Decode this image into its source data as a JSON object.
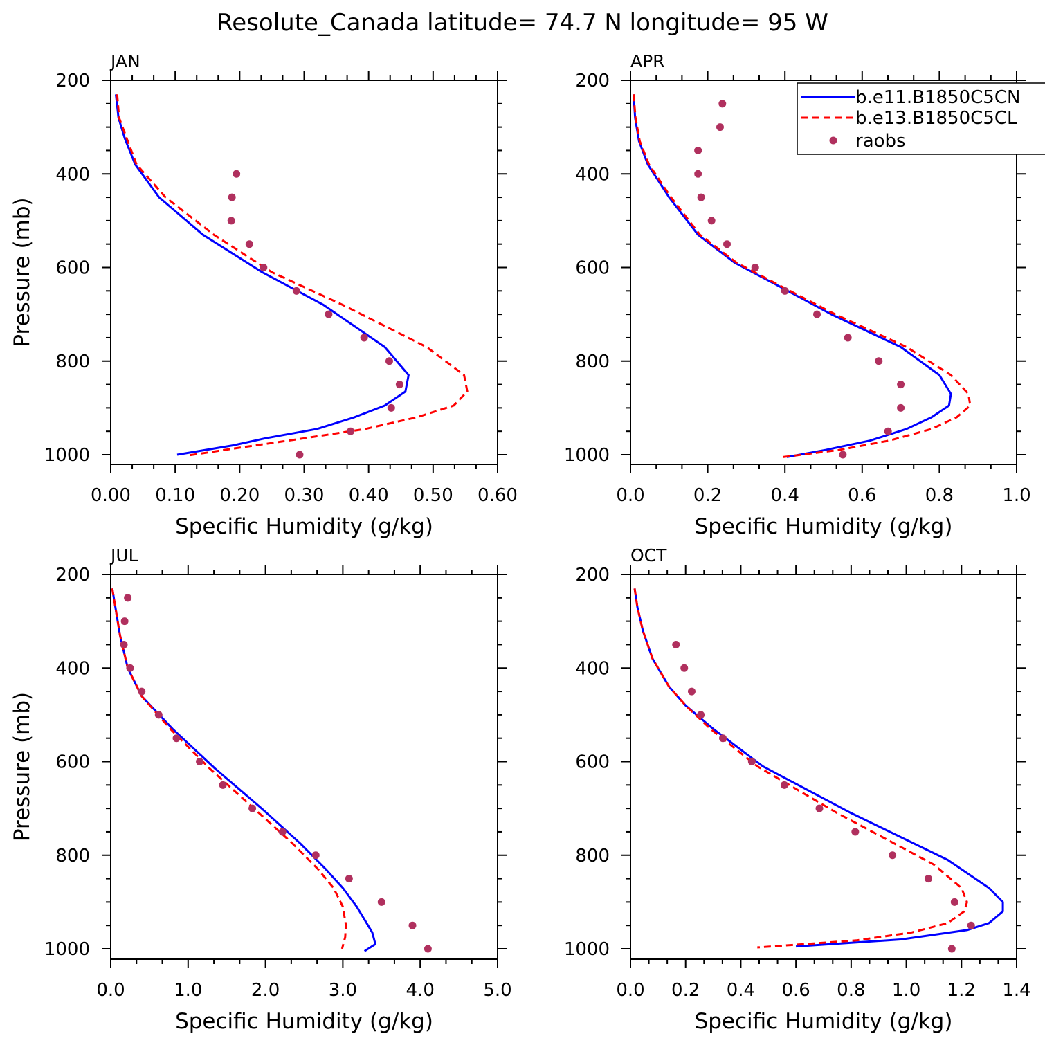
{
  "title": "Resolute_Canada  latitude= 74.7 N longitude= 95 W",
  "legend": {
    "entries": [
      "b.e11.B1850C5CN",
      "b.e13.B1850C5CL",
      "raobs"
    ],
    "colors": [
      "#0000ff",
      "#ff0000",
      "#b0305e"
    ]
  },
  "chart_data": [
    {
      "type": "line",
      "panel": "JAN",
      "xlabel": "Specific Humidity (g/kg)",
      "ylabel": "Pressure (mb)",
      "xlim": [
        0,
        0.6
      ],
      "ylim": [
        200,
        1000
      ],
      "y_inverted": true,
      "xticks": [
        "0.00",
        "0.10",
        "0.20",
        "0.30",
        "0.40",
        "0.50",
        "0.60"
      ],
      "yticks": [
        "200",
        "400",
        "600",
        "800",
        "1000"
      ],
      "series": [
        {
          "name": "b.e11.B1850C5CN",
          "style": "solid",
          "x": [
            0.008,
            0.012,
            0.022,
            0.038,
            0.075,
            0.143,
            0.235,
            0.33,
            0.425,
            0.462,
            0.457,
            0.425,
            0.378,
            0.32,
            0.24,
            0.19,
            0.103
          ],
          "y": [
            230,
            280,
            325,
            380,
            450,
            530,
            610,
            680,
            770,
            830,
            865,
            895,
            920,
            945,
            965,
            980,
            1000
          ]
        },
        {
          "name": "b.e13.B1850C5CL",
          "style": "dashed",
          "x": [
            0.01,
            0.013,
            0.025,
            0.04,
            0.085,
            0.16,
            0.25,
            0.36,
            0.49,
            0.548,
            0.553,
            0.532,
            0.475,
            0.395,
            0.3,
            0.2,
            0.118
          ],
          "y": [
            230,
            280,
            325,
            380,
            450,
            530,
            610,
            680,
            770,
            830,
            865,
            895,
            920,
            945,
            965,
            985,
            1002
          ]
        }
      ],
      "points": {
        "name": "raobs",
        "x": [
          0.195,
          0.188,
          0.187,
          0.215,
          0.237,
          0.288,
          0.338,
          0.393,
          0.432,
          0.448,
          0.435,
          0.372,
          0.293
        ],
        "y": [
          400,
          450,
          500,
          550,
          600,
          650,
          700,
          750,
          800,
          850,
          900,
          950,
          1000
        ]
      }
    },
    {
      "type": "line",
      "panel": "APR",
      "xlabel": "Specific Humidity (g/kg)",
      "ylabel": "",
      "xlim": [
        0,
        1.0
      ],
      "ylim": [
        200,
        1000
      ],
      "y_inverted": true,
      "xticks": [
        "0.0",
        "0.2",
        "0.4",
        "0.6",
        "0.8",
        "1.0"
      ],
      "yticks": [
        "200",
        "400",
        "600",
        "800",
        "1000"
      ],
      "series": [
        {
          "name": "b.e11.B1850C5CN",
          "style": "solid",
          "x": [
            0.008,
            0.012,
            0.022,
            0.045,
            0.1,
            0.175,
            0.27,
            0.385,
            0.52,
            0.7,
            0.8,
            0.83,
            0.825,
            0.78,
            0.715,
            0.62,
            0.505,
            0.405
          ],
          "y": [
            230,
            280,
            330,
            380,
            450,
            530,
            590,
            640,
            700,
            770,
            830,
            870,
            895,
            920,
            945,
            970,
            990,
            1005
          ]
        },
        {
          "name": "b.e13.B1850C5CL",
          "style": "dashed",
          "x": [
            0.008,
            0.013,
            0.024,
            0.048,
            0.105,
            0.18,
            0.275,
            0.39,
            0.53,
            0.715,
            0.83,
            0.875,
            0.88,
            0.845,
            0.78,
            0.67,
            0.54,
            0.395
          ],
          "y": [
            230,
            280,
            330,
            380,
            450,
            530,
            590,
            640,
            700,
            770,
            830,
            870,
            895,
            920,
            945,
            970,
            990,
            1005
          ]
        }
      ],
      "points": {
        "name": "raobs",
        "x": [
          0.238,
          0.232,
          0.175,
          0.175,
          0.183,
          0.21,
          0.25,
          0.323,
          0.4,
          0.483,
          0.563,
          0.643,
          0.7,
          0.7,
          0.667,
          0.55
        ],
        "y": [
          250,
          300,
          350,
          400,
          450,
          500,
          550,
          600,
          650,
          700,
          750,
          800,
          850,
          900,
          950,
          1000
        ]
      }
    },
    {
      "type": "line",
      "panel": "JUL",
      "xlabel": "Specific Humidity (g/kg)",
      "ylabel": "Pressure (mb)",
      "xlim": [
        0,
        5.0
      ],
      "ylim": [
        200,
        1000
      ],
      "y_inverted": true,
      "xticks": [
        "0.0",
        "1.0",
        "2.0",
        "3.0",
        "4.0",
        "5.0"
      ],
      "yticks": [
        "200",
        "400",
        "600",
        "800",
        "1000"
      ],
      "series": [
        {
          "name": "b.e11.B1850C5CN",
          "style": "solid",
          "x": [
            0.02,
            0.06,
            0.12,
            0.22,
            0.4,
            0.8,
            1.35,
            1.95,
            2.45,
            2.78,
            3.0,
            3.18,
            3.38,
            3.42,
            3.28
          ],
          "y": [
            230,
            270,
            330,
            400,
            460,
            530,
            615,
            700,
            775,
            830,
            870,
            910,
            965,
            990,
            1005
          ]
        },
        {
          "name": "b.e13.B1850C5CL",
          "style": "dashed",
          "x": [
            0.02,
            0.06,
            0.12,
            0.22,
            0.4,
            0.77,
            1.28,
            1.85,
            2.35,
            2.68,
            2.88,
            3.0,
            3.04,
            3.03,
            2.99
          ],
          "y": [
            230,
            270,
            330,
            400,
            460,
            530,
            615,
            700,
            775,
            830,
            870,
            910,
            950,
            975,
            1000
          ]
        }
      ],
      "points": {
        "name": "raobs",
        "x": [
          0.22,
          0.18,
          0.17,
          0.25,
          0.4,
          0.62,
          0.85,
          1.15,
          1.45,
          1.83,
          2.22,
          2.65,
          3.08,
          3.5,
          3.9,
          4.1
        ],
        "y": [
          250,
          300,
          350,
          400,
          450,
          500,
          550,
          600,
          650,
          700,
          750,
          800,
          850,
          900,
          950,
          1000
        ]
      }
    },
    {
      "type": "line",
      "panel": "OCT",
      "xlabel": "Specific Humidity (g/kg)",
      "ylabel": "",
      "xlim": [
        0,
        1.4
      ],
      "ylim": [
        200,
        1000
      ],
      "y_inverted": true,
      "xticks": [
        "0.0",
        "0.2",
        "0.4",
        "0.6",
        "0.8",
        "1.0",
        "1.2",
        "1.4"
      ],
      "yticks": [
        "200",
        "400",
        "600",
        "800",
        "1000"
      ],
      "series": [
        {
          "name": "b.e11.B1850C5CN",
          "style": "solid",
          "x": [
            0.015,
            0.025,
            0.045,
            0.08,
            0.14,
            0.2,
            0.3,
            0.48,
            0.8,
            1.15,
            1.3,
            1.35,
            1.35,
            1.3,
            1.22,
            0.98,
            0.6
          ],
          "y": [
            230,
            270,
            320,
            380,
            440,
            480,
            530,
            610,
            710,
            810,
            870,
            900,
            920,
            945,
            960,
            980,
            995
          ]
        },
        {
          "name": "b.e13.B1850C5CL",
          "style": "dashed",
          "x": [
            0.015,
            0.025,
            0.045,
            0.08,
            0.14,
            0.2,
            0.29,
            0.46,
            0.75,
            1.1,
            1.2,
            1.22,
            1.21,
            1.15,
            1.02,
            0.82,
            0.46
          ],
          "y": [
            230,
            270,
            320,
            380,
            440,
            480,
            530,
            610,
            710,
            820,
            870,
            900,
            920,
            945,
            965,
            982,
            997
          ]
        }
      ],
      "points": {
        "name": "raobs",
        "x": [
          0.165,
          0.195,
          0.222,
          0.255,
          0.335,
          0.44,
          0.558,
          0.685,
          0.815,
          0.95,
          1.08,
          1.175,
          1.235,
          1.165
        ],
        "y": [
          350,
          400,
          450,
          500,
          550,
          600,
          650,
          700,
          750,
          800,
          850,
          900,
          950,
          1000
        ]
      }
    }
  ]
}
